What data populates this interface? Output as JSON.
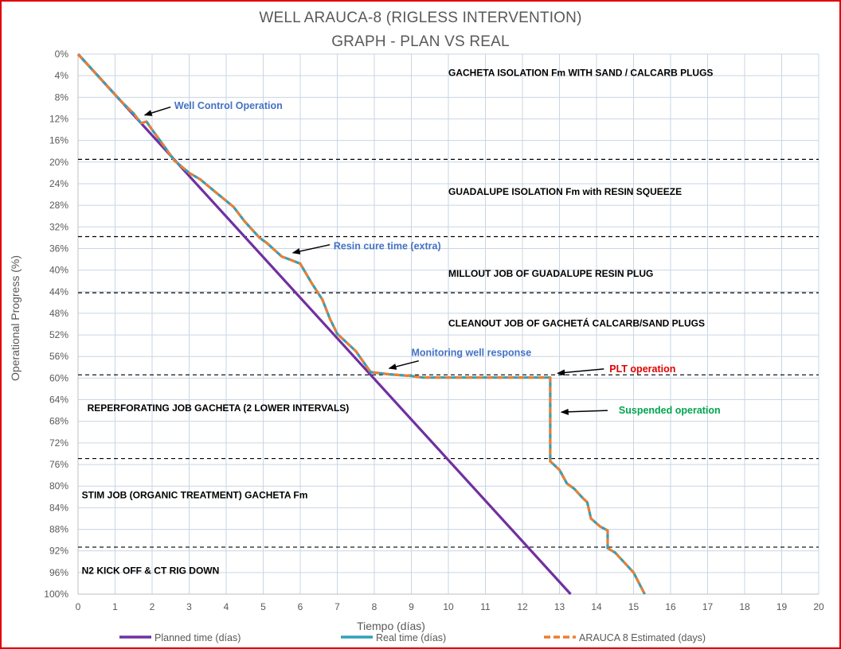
{
  "chart_data": {
    "type": "line",
    "title": "WELL ARAUCA-8 (RIGLESS INTERVENTION)",
    "subtitle": "GRAPH  - PLAN VS REAL",
    "xlabel": "Tiempo (días)",
    "ylabel": "Operational Progress (%)",
    "xlim": [
      0,
      20
    ],
    "ylim": [
      0,
      100
    ],
    "y_inverted": true,
    "grid": true,
    "legend_position": "bottom",
    "x_ticks": [
      "0",
      "1",
      "2",
      "3",
      "4",
      "5",
      "6",
      "7",
      "8",
      "9",
      "10",
      "11",
      "12",
      "13",
      "14",
      "15",
      "16",
      "17",
      "18",
      "19",
      "20"
    ],
    "y_ticks": [
      "0%",
      "4%",
      "8%",
      "12%",
      "16%",
      "20%",
      "24%",
      "28%",
      "32%",
      "36%",
      "40%",
      "44%",
      "48%",
      "52%",
      "56%",
      "60%",
      "64%",
      "68%",
      "72%",
      "76%",
      "80%",
      "84%",
      "88%",
      "92%",
      "96%",
      "100%"
    ],
    "series": [
      {
        "name": "Planned time (días)",
        "color": "#7030a0",
        "style": "solid",
        "points": [
          [
            0,
            0
          ],
          [
            13.3,
            100
          ]
        ]
      },
      {
        "name": "Real time (días)",
        "color": "#31a0b9",
        "style": "solid",
        "points": [
          [
            0,
            0
          ],
          [
            1,
            7.5
          ],
          [
            1.2,
            9
          ],
          [
            1.5,
            11
          ],
          [
            1.7,
            12.8
          ],
          [
            1.85,
            12.5
          ],
          [
            2,
            14
          ],
          [
            2.3,
            16.8
          ],
          [
            2.6,
            19.7
          ],
          [
            3,
            22
          ],
          [
            3.3,
            23.2
          ],
          [
            3.7,
            25.5
          ],
          [
            4.2,
            28.3
          ],
          [
            4.5,
            31
          ],
          [
            4.9,
            34
          ],
          [
            5.1,
            35
          ],
          [
            5.5,
            37.5
          ],
          [
            5.7,
            38
          ],
          [
            6,
            38.8
          ],
          [
            6.3,
            42.3
          ],
          [
            6.6,
            45.5
          ],
          [
            6.8,
            49
          ],
          [
            7,
            51.8
          ],
          [
            7.5,
            55
          ],
          [
            7.9,
            58.9
          ],
          [
            8.4,
            59.3
          ],
          [
            9,
            59.6
          ],
          [
            9.3,
            59.9
          ],
          [
            12.75,
            59.9
          ],
          [
            12.75,
            75.4
          ],
          [
            13,
            77
          ],
          [
            13.2,
            79.5
          ],
          [
            13.4,
            80.5
          ],
          [
            13.6,
            82
          ],
          [
            13.75,
            83
          ],
          [
            13.85,
            86
          ],
          [
            14.1,
            87.5
          ],
          [
            14.3,
            88.2
          ],
          [
            14.3,
            91.5
          ],
          [
            14.5,
            92.3
          ],
          [
            15,
            96
          ],
          [
            15.3,
            100
          ]
        ]
      },
      {
        "name": "ARAUCA 8 Estimated (days)",
        "color": "#ed7d31",
        "style": "dashed",
        "points": [
          [
            0,
            0
          ],
          [
            1,
            7.5
          ],
          [
            1.2,
            9
          ],
          [
            1.5,
            11
          ],
          [
            1.7,
            12.8
          ],
          [
            1.85,
            12.5
          ],
          [
            2,
            14
          ],
          [
            2.3,
            16.8
          ],
          [
            2.6,
            19.7
          ],
          [
            3,
            22
          ],
          [
            3.3,
            23.2
          ],
          [
            3.7,
            25.5
          ],
          [
            4.2,
            28.3
          ],
          [
            4.5,
            31
          ],
          [
            4.9,
            34
          ],
          [
            5.1,
            35
          ],
          [
            5.5,
            37.5
          ],
          [
            5.7,
            38
          ],
          [
            6,
            38.8
          ],
          [
            6.3,
            42.3
          ],
          [
            6.6,
            45.5
          ],
          [
            6.8,
            49
          ],
          [
            7,
            51.8
          ],
          [
            7.5,
            55
          ],
          [
            7.9,
            58.9
          ],
          [
            8.4,
            59.3
          ],
          [
            9,
            59.6
          ],
          [
            9.3,
            59.9
          ],
          [
            12.75,
            59.9
          ],
          [
            12.75,
            75.4
          ],
          [
            13,
            77
          ],
          [
            13.2,
            79.5
          ],
          [
            13.4,
            80.5
          ],
          [
            13.6,
            82
          ],
          [
            13.75,
            83
          ],
          [
            13.85,
            86
          ],
          [
            14.1,
            87.5
          ],
          [
            14.3,
            88.2
          ],
          [
            14.3,
            91.5
          ],
          [
            14.5,
            92.3
          ],
          [
            15,
            96
          ],
          [
            15.3,
            100
          ]
        ]
      }
    ],
    "phase_separators_pct": [
      19.5,
      33.8,
      44.2,
      59.4,
      74.9,
      91.3
    ],
    "phase_labels": [
      {
        "text": "GACHETA ISOLATION Fm WITH SAND / CALCARB PLUGS",
        "x": 10,
        "y": 3.3,
        "anchor": "start"
      },
      {
        "text": "GUADALUPE ISOLATION Fm with RESIN SQUEEZE",
        "x": 10,
        "y": 25.3,
        "anchor": "start"
      },
      {
        "text": "MILLOUT JOB OF GUADALUPE RESIN PLUG",
        "x": 10,
        "y": 40.5,
        "anchor": "start"
      },
      {
        "text": "CLEANOUT JOB OF GACHETÁ CALCARB/SAND PLUGS",
        "x": 10,
        "y": 49.7,
        "anchor": "start"
      },
      {
        "text": "REPERFORATING JOB GACHETA (2 LOWER INTERVALS)",
        "x": 0.25,
        "y": 65.4,
        "anchor": "start"
      },
      {
        "text": "STIM JOB (ORGANIC TREATMENT) GACHETA Fm",
        "x": 0.1,
        "y": 81.5,
        "anchor": "start"
      },
      {
        "text": "N2 KICK OFF & CT RIG DOWN",
        "x": 0.1,
        "y": 95.5,
        "anchor": "start"
      }
    ],
    "annotations": [
      {
        "text": "Well Control Operation",
        "color": "#4472c4",
        "text_x": 2.6,
        "text_y": 9.6,
        "tail": [
          2.5,
          9.8
        ],
        "head": [
          1.8,
          11.3
        ]
      },
      {
        "text": "Resin cure time (extra)",
        "color": "#4472c4",
        "text_x": 6.9,
        "text_y": 35.6,
        "tail": [
          6.8,
          35.3
        ],
        "head": [
          5.8,
          36.8
        ]
      },
      {
        "text": "Monitoring well response",
        "color": "#4472c4",
        "text_x": 9.0,
        "text_y": 55.3,
        "tail": [
          9.2,
          56.8
        ],
        "head": [
          8.4,
          58.2
        ]
      },
      {
        "text": "PLT operation",
        "color": "#e00000",
        "text_x": 14.35,
        "text_y": 58.3,
        "tail": [
          14.2,
          58.3
        ],
        "head": [
          12.95,
          59.1
        ]
      },
      {
        "text": "Suspended operation",
        "color": "#00a550",
        "text_x": 14.6,
        "text_y": 66.0,
        "tail": [
          14.3,
          66.0
        ],
        "head": [
          13.05,
          66.3
        ]
      }
    ]
  }
}
